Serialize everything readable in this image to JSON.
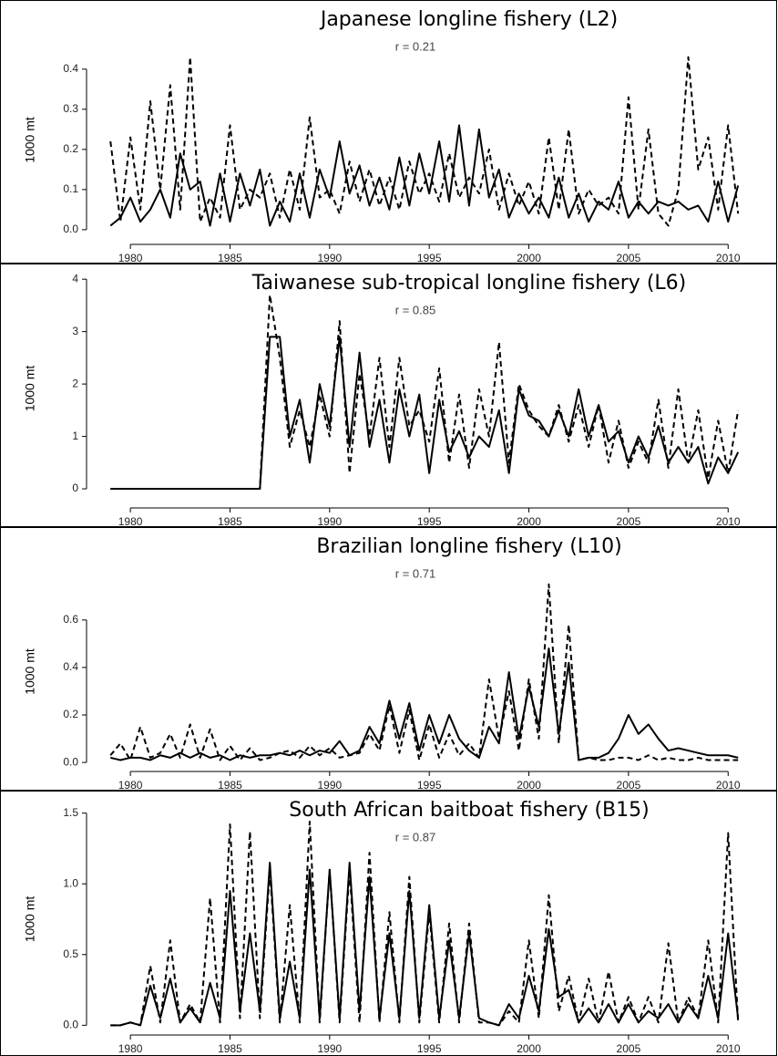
{
  "chart_data": [
    {
      "type": "line",
      "title": "Japanese longline fishery (L2)",
      "annotation": "r = 0.21",
      "ylabel": "1000 mt",
      "x": [
        1979,
        1979.5,
        1980,
        1980.5,
        1981,
        1981.5,
        1982,
        1982.5,
        1983,
        1983.5,
        1984,
        1984.5,
        1985,
        1985.5,
        1986,
        1986.5,
        1987,
        1987.5,
        1988,
        1988.5,
        1989,
        1989.5,
        1990,
        1990.5,
        1991,
        1991.5,
        1992,
        1992.5,
        1993,
        1993.5,
        1994,
        1994.5,
        1995,
        1995.5,
        1996,
        1996.5,
        1997,
        1997.5,
        1998,
        1998.5,
        1999,
        1999.5,
        2000,
        2000.5,
        2001,
        2001.5,
        2002,
        2002.5,
        2003,
        2003.5,
        2004,
        2004.5,
        2005,
        2005.5,
        2006,
        2006.5,
        2007,
        2007.5,
        2008,
        2008.5,
        2009,
        2009.5,
        2010,
        2010.5
      ],
      "series": [
        {
          "color": "#000000",
          "style": "solid",
          "values": [
            0.01,
            0.03,
            0.08,
            0.02,
            0.05,
            0.1,
            0.03,
            0.19,
            0.1,
            0.12,
            0.01,
            0.14,
            0.02,
            0.14,
            0.06,
            0.15,
            0.01,
            0.07,
            0.02,
            0.14,
            0.03,
            0.15,
            0.08,
            0.22,
            0.09,
            0.16,
            0.06,
            0.13,
            0.05,
            0.18,
            0.06,
            0.19,
            0.09,
            0.22,
            0.07,
            0.26,
            0.06,
            0.25,
            0.08,
            0.15,
            0.03,
            0.09,
            0.04,
            0.08,
            0.03,
            0.13,
            0.03,
            0.09,
            0.02,
            0.07,
            0.05,
            0.12,
            0.03,
            0.07,
            0.04,
            0.07,
            0.06,
            0.07,
            0.05,
            0.06,
            0.02,
            0.12,
            0.02,
            0.11
          ]
        },
        {
          "color": "#000000",
          "style": "dashed",
          "values": [
            0.22,
            0.02,
            0.23,
            0.05,
            0.32,
            0.1,
            0.36,
            0.05,
            0.43,
            0.02,
            0.08,
            0.03,
            0.26,
            0.05,
            0.1,
            0.08,
            0.14,
            0.03,
            0.15,
            0.05,
            0.28,
            0.08,
            0.1,
            0.04,
            0.17,
            0.07,
            0.15,
            0.06,
            0.13,
            0.05,
            0.17,
            0.09,
            0.14,
            0.07,
            0.19,
            0.08,
            0.13,
            0.09,
            0.2,
            0.05,
            0.14,
            0.06,
            0.12,
            0.04,
            0.23,
            0.05,
            0.25,
            0.04,
            0.1,
            0.06,
            0.08,
            0.04,
            0.33,
            0.05,
            0.25,
            0.04,
            0.01,
            0.1,
            0.43,
            0.15,
            0.23,
            0.05,
            0.26,
            0.04
          ]
        }
      ],
      "xlim": [
        1977.8,
        2012
      ],
      "xticks": [
        1980,
        1985,
        1990,
        1995,
        2000,
        2005,
        2010
      ],
      "ylim": [
        -0.023,
        0.47
      ],
      "yticks": [
        {
          "value": 0,
          "label": "0.0"
        },
        0.1,
        0.2,
        0.3,
        0.4
      ]
    },
    {
      "type": "line",
      "title": "Taiwanese sub-tropical longline fishery  (L6)",
      "annotation": "r = 0.85",
      "ylabel": "1000 mt",
      "x": [
        1979,
        1979.5,
        1980,
        1980.5,
        1981,
        1981.5,
        1982,
        1982.5,
        1983,
        1983.5,
        1984,
        1984.5,
        1985,
        1985.5,
        1986,
        1986.5,
        1987,
        1987.5,
        1988,
        1988.5,
        1989,
        1989.5,
        1990,
        1990.5,
        1991,
        1991.5,
        1992,
        1992.5,
        1993,
        1993.5,
        1994,
        1994.5,
        1995,
        1995.5,
        1996,
        1996.5,
        1997,
        1997.5,
        1998,
        1998.5,
        1999,
        1999.5,
        2000,
        2000.5,
        2001,
        2001.5,
        2002,
        2002.5,
        2003,
        2003.5,
        2004,
        2004.5,
        2005,
        2005.5,
        2006,
        2006.5,
        2007,
        2007.5,
        2008,
        2008.5,
        2009,
        2009.5,
        2010,
        2010.5
      ],
      "series": [
        {
          "color": "#000000",
          "style": "solid",
          "values": [
            0,
            0,
            0,
            0,
            0,
            0,
            0,
            0,
            0,
            0,
            0,
            0,
            0,
            0,
            0,
            0,
            2.9,
            2.9,
            1.0,
            1.7,
            0.5,
            2.0,
            1.2,
            2.9,
            0.8,
            2.6,
            0.8,
            1.7,
            0.5,
            1.9,
            1.0,
            1.8,
            0.3,
            1.7,
            0.7,
            1.1,
            0.6,
            1.0,
            0.8,
            1.5,
            0.3,
            1.9,
            1.4,
            1.3,
            1.0,
            1.5,
            1.0,
            1.9,
            1.0,
            1.6,
            0.9,
            1.1,
            0.5,
            1.0,
            0.6,
            1.2,
            0.5,
            0.8,
            0.5,
            0.8,
            0.1,
            0.6,
            0.3,
            0.7
          ]
        },
        {
          "color": "#000000",
          "style": "dashed",
          "values": [
            0,
            0,
            0,
            0,
            0,
            0,
            0,
            0,
            0,
            0,
            0,
            0,
            0,
            0,
            0,
            0,
            3.7,
            2.5,
            0.8,
            1.5,
            0.8,
            1.8,
            1.0,
            3.2,
            0.3,
            2.2,
            1.0,
            2.5,
            0.8,
            2.5,
            1.2,
            1.5,
            0.9,
            2.3,
            0.5,
            1.8,
            0.4,
            1.9,
            1.0,
            2.8,
            0.5,
            2.0,
            1.5,
            1.2,
            1.0,
            1.6,
            0.9,
            1.6,
            0.8,
            1.6,
            0.5,
            1.3,
            0.4,
            0.9,
            0.5,
            1.7,
            0.4,
            1.9,
            0.5,
            1.5,
            0.2,
            1.3,
            0.3,
            1.5
          ]
        }
      ],
      "xlim": [
        1977.8,
        2012
      ],
      "xticks": [
        1980,
        1985,
        1990,
        1995,
        2000,
        2005,
        2010
      ],
      "ylim": [
        -0.26,
        4.09
      ],
      "yticks": [
        0,
        1,
        2,
        3,
        4
      ]
    },
    {
      "type": "line",
      "title": "Brazilian longline fishery (L10)",
      "annotation": "r = 0.71",
      "ylabel": "1000 mt",
      "x": [
        1979,
        1979.5,
        1980,
        1980.5,
        1981,
        1981.5,
        1982,
        1982.5,
        1983,
        1983.5,
        1984,
        1984.5,
        1985,
        1985.5,
        1986,
        1986.5,
        1987,
        1987.5,
        1988,
        1988.5,
        1989,
        1989.5,
        1990,
        1990.5,
        1991,
        1991.5,
        1992,
        1992.5,
        1993,
        1993.5,
        1994,
        1994.5,
        1995,
        1995.5,
        1996,
        1996.5,
        1997,
        1997.5,
        1998,
        1998.5,
        1999,
        1999.5,
        2000,
        2000.5,
        2001,
        2001.5,
        2002,
        2002.5,
        2003,
        2003.5,
        2004,
        2004.5,
        2005,
        2005.5,
        2006,
        2006.5,
        2007,
        2007.5,
        2008,
        2008.5,
        2009,
        2009.5,
        2010,
        2010.5
      ],
      "series": [
        {
          "color": "#000000",
          "style": "solid",
          "values": [
            0.02,
            0.01,
            0.02,
            0.02,
            0.01,
            0.03,
            0.02,
            0.04,
            0.02,
            0.04,
            0.02,
            0.03,
            0.01,
            0.03,
            0.02,
            0.03,
            0.03,
            0.04,
            0.03,
            0.05,
            0.03,
            0.05,
            0.04,
            0.09,
            0.03,
            0.05,
            0.15,
            0.08,
            0.26,
            0.1,
            0.25,
            0.05,
            0.2,
            0.08,
            0.2,
            0.1,
            0.05,
            0.02,
            0.15,
            0.08,
            0.38,
            0.1,
            0.32,
            0.15,
            0.48,
            0.12,
            0.42,
            0.01,
            0.02,
            0.02,
            0.04,
            0.1,
            0.2,
            0.12,
            0.16,
            0.1,
            0.05,
            0.06,
            0.05,
            0.04,
            0.03,
            0.03,
            0.03,
            0.02
          ]
        },
        {
          "color": "#000000",
          "style": "dashed",
          "values": [
            0.03,
            0.08,
            0.01,
            0.15,
            0.02,
            0.04,
            0.12,
            0.02,
            0.16,
            0.02,
            0.14,
            0.01,
            0.07,
            0.01,
            0.06,
            0.01,
            0.02,
            0.04,
            0.05,
            0.02,
            0.07,
            0.03,
            0.06,
            0.02,
            0.03,
            0.04,
            0.12,
            0.05,
            0.24,
            0.04,
            0.22,
            0.01,
            0.16,
            0.02,
            0.12,
            0.03,
            0.08,
            0.02,
            0.35,
            0.1,
            0.3,
            0.05,
            0.35,
            0.1,
            0.75,
            0.08,
            0.58,
            0.01,
            0.02,
            0.01,
            0.01,
            0.02,
            0.02,
            0.01,
            0.03,
            0.01,
            0.02,
            0.01,
            0.01,
            0.02,
            0.01,
            0.01,
            0.01,
            0.01
          ]
        }
      ],
      "xlim": [
        1977.8,
        2012
      ],
      "xticks": [
        1980,
        1985,
        1990,
        1995,
        2000,
        2005,
        2010
      ],
      "ylim": [
        -0.015,
        0.78
      ],
      "yticks": [
        {
          "value": 0,
          "label": "0.0"
        },
        0.2,
        0.4,
        0.6
      ]
    },
    {
      "type": "line",
      "title": "South African baitboat fishery (B15)",
      "annotation": "r = 0.87",
      "ylabel": "1000 mt",
      "x": [
        1979,
        1979.5,
        1980,
        1980.5,
        1981,
        1981.5,
        1982,
        1982.5,
        1983,
        1983.5,
        1984,
        1984.5,
        1985,
        1985.5,
        1986,
        1986.5,
        1987,
        1987.5,
        1988,
        1988.5,
        1989,
        1989.5,
        1990,
        1990.5,
        1991,
        1991.5,
        1992,
        1992.5,
        1993,
        1993.5,
        1994,
        1994.5,
        1995,
        1995.5,
        1996,
        1996.5,
        1997,
        1997.5,
        1998,
        1998.5,
        1999,
        1999.5,
        2000,
        2000.5,
        2001,
        2001.5,
        2002,
        2002.5,
        2003,
        2003.5,
        2004,
        2004.5,
        2005,
        2005.5,
        2006,
        2006.5,
        2007,
        2007.5,
        2008,
        2008.5,
        2009,
        2009.5,
        2010,
        2010.5
      ],
      "series": [
        {
          "color": "#000000",
          "style": "solid",
          "values": [
            0,
            0,
            0.02,
            0,
            0.28,
            0.05,
            0.33,
            0.02,
            0.12,
            0.02,
            0.3,
            0.05,
            0.95,
            0.1,
            0.65,
            0.1,
            1.15,
            0.05,
            0.45,
            0.05,
            1.1,
            0.05,
            1.1,
            0.05,
            1.15,
            0.1,
            1.05,
            0.05,
            0.65,
            0.05,
            0.95,
            0.05,
            0.85,
            0.05,
            0.6,
            0.05,
            0.65,
            0.05,
            0.02,
            0,
            0.15,
            0.05,
            0.35,
            0.1,
            0.68,
            0.2,
            0.25,
            0.02,
            0.12,
            0.02,
            0.15,
            0.02,
            0.15,
            0.02,
            0.1,
            0.05,
            0.15,
            0.02,
            0.15,
            0.05,
            0.35,
            0.05,
            0.65,
            0.05
          ]
        },
        {
          "color": "#000000",
          "style": "dashed",
          "values": [
            0,
            0,
            0.02,
            0,
            0.42,
            0.02,
            0.6,
            0.02,
            0.15,
            0.02,
            0.9,
            0.02,
            1.42,
            0.05,
            1.37,
            0.05,
            1.1,
            0.02,
            0.85,
            0.02,
            1.44,
            0.02,
            1.1,
            0.02,
            1.1,
            0.02,
            1.22,
            0.02,
            0.8,
            0.02,
            1.05,
            0.02,
            0.8,
            0.02,
            0.72,
            0.02,
            0.72,
            0.02,
            0.02,
            0,
            0.1,
            0.02,
            0.6,
            0.05,
            0.92,
            0.1,
            0.35,
            0.02,
            0.33,
            0.02,
            0.38,
            0.02,
            0.2,
            0.02,
            0.2,
            0.02,
            0.58,
            0.02,
            0.2,
            0.05,
            0.6,
            0.02,
            1.36,
            0.02
          ]
        }
      ],
      "xlim": [
        1977.8,
        2012
      ],
      "xticks": [
        1980,
        1985,
        1990,
        1995,
        2000,
        2005,
        2010
      ],
      "ylim": [
        -0.03,
        1.53
      ],
      "yticks": [
        {
          "value": 0,
          "label": "0.0"
        },
        0.5,
        {
          "value": 1,
          "label": "1.0"
        },
        1.5
      ]
    }
  ]
}
